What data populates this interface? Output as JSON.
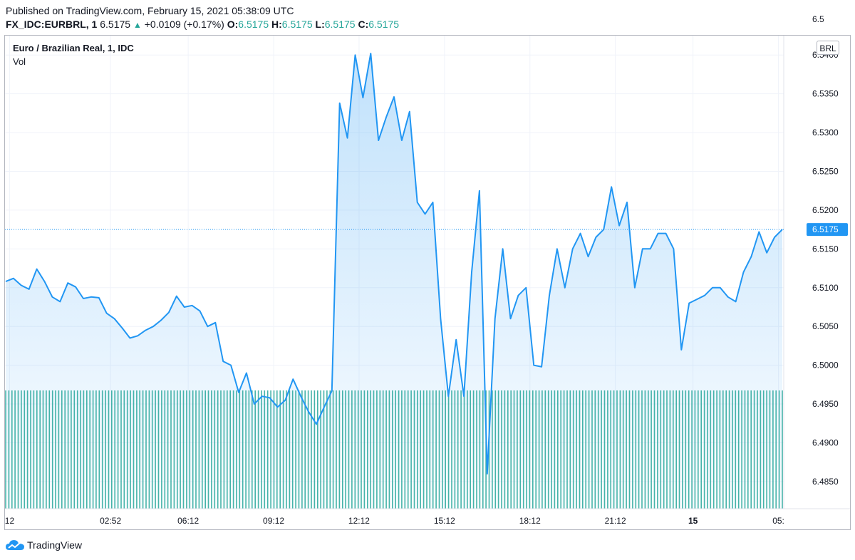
{
  "header": {
    "published": "Published on TradingView.com, February 15, 2021 05:38:09 UTC",
    "symbol": "FX_IDC:EURBRL, 1",
    "last": "6.5175",
    "change": "+0.0109 (+0.17%)",
    "o_label": "O:",
    "o_value": "6.5175",
    "h_label": "H:",
    "h_value": "6.5175",
    "l_label": "L:",
    "l_value": "6.5175",
    "c_label": "C:",
    "c_value": "6.5175"
  },
  "legend": {
    "title": "Euro / Brazilian Real, 1, IDC",
    "volume": "Vol"
  },
  "currency_button": "BRL",
  "footer": {
    "brand": "TradingView"
  },
  "colors": {
    "line": "#2196f3",
    "volume": "#26a69a",
    "positive": "#26a69a",
    "last_price_tag": "#2196f3"
  },
  "chart_data": {
    "type": "area",
    "ylim": [
      6.4815,
      6.5425
    ],
    "y_ticks": [
      6.485,
      6.49,
      6.495,
      6.5,
      6.505,
      6.51,
      6.515,
      6.52,
      6.525,
      6.53,
      6.535,
      6.54
    ],
    "y_tick_labels": [
      "6.4850",
      "6.4900",
      "6.4950",
      "6.5000",
      "6.5050",
      "6.5100",
      "6.5150",
      "6.5200",
      "6.5250",
      "6.5300",
      "6.5350",
      "6.5400"
    ],
    "top_tick_partial": "6.5",
    "last_price": 6.5175,
    "last_price_label": "6.5175",
    "x_ticks": [
      "12",
      "02:52",
      "06:12",
      "09:12",
      "12:12",
      "15:12",
      "18:12",
      "21:12",
      "15",
      "05:"
    ],
    "x_tick_positions_index": [
      0.5,
      13.5,
      23.5,
      34.5,
      45.5,
      56.5,
      67.5,
      78.5,
      88.5,
      99.5
    ],
    "bold_ticks": [
      "15"
    ],
    "n": 101,
    "series": [
      {
        "values": [
          6.5108,
          6.5112,
          6.5103,
          6.5098,
          6.5124,
          6.5108,
          6.5088,
          6.5082,
          6.5106,
          6.5101,
          6.5086,
          6.5088,
          6.5087,
          6.5067,
          6.506,
          6.5048,
          6.5035,
          6.5038,
          6.5045,
          6.505,
          6.5058,
          6.5068,
          6.5089,
          6.5075,
          6.5077,
          6.507,
          6.505,
          6.5055,
          6.5005,
          6.5,
          6.4965,
          6.499,
          6.495,
          6.496,
          6.4958,
          6.4946,
          6.4955,
          6.4982,
          6.496,
          6.494,
          6.4924,
          6.4946,
          6.4967,
          6.5338,
          6.5293,
          6.54,
          6.5345,
          6.5402,
          6.529,
          6.532,
          6.5346,
          6.529,
          6.5327,
          6.521,
          6.5195,
          6.521,
          6.506,
          6.496,
          6.5033,
          6.496,
          6.512,
          6.5225,
          6.486,
          6.506,
          6.515,
          6.506,
          6.509,
          6.51,
          6.5,
          6.4998,
          6.509,
          6.515,
          6.51,
          6.515,
          6.517,
          6.514,
          6.5165,
          6.5175,
          6.523,
          6.518,
          6.521,
          6.51,
          6.515,
          6.515,
          6.517,
          6.517,
          6.515,
          6.502,
          6.508,
          6.5085,
          6.509,
          6.51,
          6.51,
          6.5088,
          6.5082,
          6.512,
          6.514,
          6.5172,
          6.5145,
          6.5165,
          6.5175
        ]
      }
    ],
    "volume": {
      "name": "Vol",
      "bars": 101,
      "level": 0.25
    },
    "grid": true,
    "legend_position": "top-left"
  }
}
